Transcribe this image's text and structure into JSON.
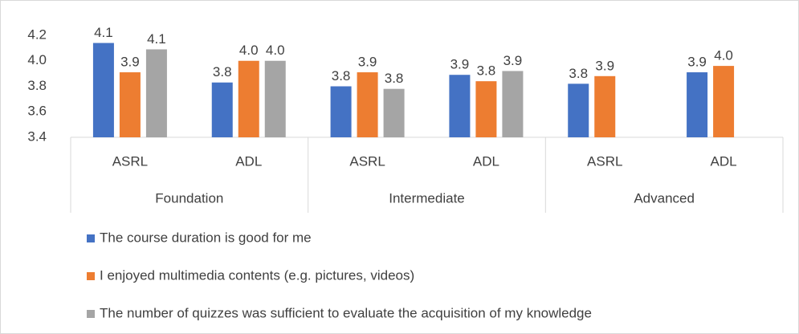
{
  "chart_data": {
    "type": "bar",
    "groups": [
      "Foundation",
      "Intermediate",
      "Advanced"
    ],
    "categories": [
      "ASRL",
      "ADL",
      "ASRL",
      "ADL",
      "ASRL",
      "ADL"
    ],
    "series": [
      {
        "name": "The course duration is good for me",
        "color": "#4472c4",
        "values": [
          4.14,
          3.83,
          3.8,
          3.89,
          3.82,
          3.91
        ],
        "value_labels": [
          "4.1",
          "3.8",
          "3.8",
          "3.9",
          "3.8",
          "3.9"
        ]
      },
      {
        "name": "I enjoyed multimedia contents (e.g. pictures, videos)",
        "color": "#ed7d31",
        "values": [
          3.91,
          4.0,
          3.91,
          3.84,
          3.88,
          3.96
        ],
        "value_labels": [
          "3.9",
          "4.0",
          "3.9",
          "3.8",
          "3.9",
          "4.0"
        ]
      },
      {
        "name": "The number of quizzes was sufficient to evaluate the acquisition of my knowledge",
        "color": "#a5a5a5",
        "values": [
          4.09,
          4.0,
          3.78,
          3.92,
          null,
          null
        ],
        "value_labels": [
          "4.1",
          "4.0",
          "3.8",
          "3.9",
          null,
          null
        ]
      }
    ],
    "ylim": [
      3.4,
      4.2
    ],
    "yticks": [
      3.4,
      3.6,
      3.8,
      {
        "value": 4,
        "label": "4.0"
      },
      4.2
    ],
    "grid": false
  }
}
